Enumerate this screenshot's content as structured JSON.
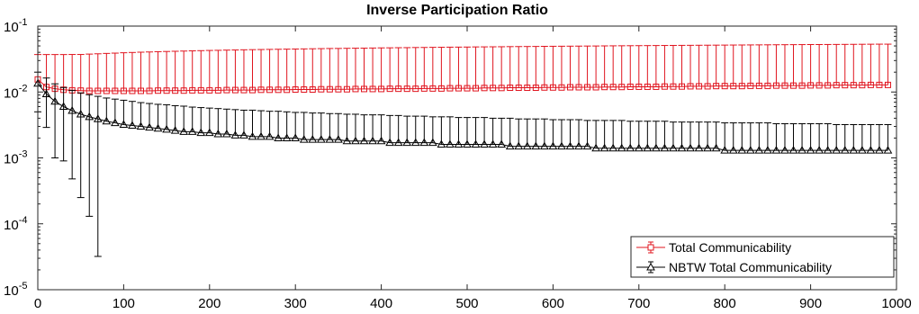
{
  "chart_data": {
    "type": "line",
    "title": "Inverse Participation Ratio",
    "xlabel": "",
    "ylabel": "",
    "xlim": [
      0,
      1000
    ],
    "ylim": [
      1e-05,
      0.1
    ],
    "yscale": "log",
    "grid": false,
    "legend_position": "bottom-right",
    "x_ticks": [
      0,
      100,
      200,
      300,
      400,
      500,
      600,
      700,
      800,
      900,
      1000
    ],
    "y_ticks": [
      {
        "value": 1e-05,
        "base": "10",
        "exp": "-5"
      },
      {
        "value": 0.0001,
        "base": "10",
        "exp": "-4"
      },
      {
        "value": 0.001,
        "base": "10",
        "exp": "-3"
      },
      {
        "value": 0.01,
        "base": "10",
        "exp": "-2"
      },
      {
        "value": 0.1,
        "base": "10",
        "exp": "-1"
      }
    ],
    "x": [
      0,
      10,
      20,
      30,
      40,
      50,
      60,
      70,
      80,
      90,
      100,
      110,
      120,
      130,
      140,
      150,
      160,
      170,
      180,
      190,
      200,
      210,
      220,
      230,
      240,
      250,
      260,
      270,
      280,
      290,
      300,
      310,
      320,
      330,
      340,
      350,
      360,
      370,
      380,
      390,
      400,
      410,
      420,
      430,
      440,
      450,
      460,
      470,
      480,
      490,
      500,
      510,
      520,
      530,
      540,
      550,
      560,
      570,
      580,
      590,
      600,
      610,
      620,
      630,
      640,
      650,
      660,
      670,
      680,
      690,
      700,
      710,
      720,
      730,
      740,
      750,
      760,
      770,
      780,
      790,
      800,
      810,
      820,
      830,
      840,
      850,
      860,
      870,
      880,
      890,
      900,
      910,
      920,
      930,
      940,
      950,
      960,
      970,
      980,
      990
    ],
    "series": [
      {
        "name": "Total Communicability",
        "color": "#e0141e",
        "marker": "square",
        "values": [
          0.0155,
          0.0119,
          0.0112,
          0.0108,
          0.0106,
          0.0105,
          0.0104,
          0.0104,
          0.0104,
          0.0104,
          0.0104,
          0.0104,
          0.0104,
          0.0104,
          0.0105,
          0.0105,
          0.0105,
          0.0105,
          0.0106,
          0.0106,
          0.0106,
          0.0106,
          0.0107,
          0.0107,
          0.0107,
          0.0107,
          0.0108,
          0.0108,
          0.0108,
          0.0108,
          0.0109,
          0.0109,
          0.0109,
          0.011,
          0.011,
          0.011,
          0.011,
          0.0111,
          0.0111,
          0.0111,
          0.0111,
          0.0112,
          0.0112,
          0.0112,
          0.0112,
          0.0113,
          0.0113,
          0.0113,
          0.0114,
          0.0114,
          0.0114,
          0.0114,
          0.0115,
          0.0115,
          0.0115,
          0.0116,
          0.0116,
          0.0116,
          0.0116,
          0.0117,
          0.0117,
          0.0117,
          0.0118,
          0.0118,
          0.0118,
          0.0118,
          0.0119,
          0.0119,
          0.0119,
          0.012,
          0.012,
          0.012,
          0.012,
          0.0121,
          0.0121,
          0.0121,
          0.0122,
          0.0122,
          0.0122,
          0.0123,
          0.0123,
          0.0123,
          0.0123,
          0.0124,
          0.0124,
          0.0124,
          0.0125,
          0.0125,
          0.0125,
          0.0125,
          0.0126,
          0.0126,
          0.0126,
          0.0127,
          0.0127,
          0.0127,
          0.0127,
          0.0128,
          0.0128,
          0.0128
        ],
        "upper": [
          0.037,
          0.037,
          0.037,
          0.037,
          0.0371,
          0.0371,
          0.0376,
          0.038,
          0.0385,
          0.0389,
          0.0394,
          0.0398,
          0.0402,
          0.0405,
          0.0409,
          0.0412,
          0.0415,
          0.0418,
          0.0421,
          0.0424,
          0.0427,
          0.0429,
          0.0432,
          0.0434,
          0.0437,
          0.0439,
          0.0441,
          0.0443,
          0.0445,
          0.0447,
          0.0449,
          0.0451,
          0.0453,
          0.0455,
          0.0457,
          0.0458,
          0.046,
          0.0462,
          0.0463,
          0.0465,
          0.0467,
          0.0468,
          0.047,
          0.0471,
          0.0473,
          0.0474,
          0.0476,
          0.0477,
          0.0479,
          0.048,
          0.0481,
          0.0483,
          0.0484,
          0.0485,
          0.0486,
          0.0488,
          0.0489,
          0.049,
          0.0491,
          0.0493,
          0.0494,
          0.0495,
          0.0496,
          0.0497,
          0.0498,
          0.0499,
          0.0501,
          0.0502,
          0.0503,
          0.0504,
          0.0505,
          0.0506,
          0.0507,
          0.0508,
          0.0509,
          0.051,
          0.0511,
          0.0512,
          0.0513,
          0.0514,
          0.0515,
          0.0516,
          0.0517,
          0.0518,
          0.0519,
          0.052,
          0.0521,
          0.0522,
          0.0523,
          0.0524,
          0.0525,
          0.0525,
          0.0526,
          0.0527,
          0.0528,
          0.0529,
          0.053,
          0.0531,
          0.0532,
          0.0532
        ]
      },
      {
        "name": "NBTW Total Communicability",
        "color": "#000000",
        "marker": "triangle",
        "values": [
          0.0135,
          0.0093,
          0.0072,
          0.006,
          0.0052,
          0.0046,
          0.0042,
          0.0039,
          0.0036,
          0.0034,
          0.0032,
          0.0031,
          0.003,
          0.0029,
          0.0028,
          0.0027,
          0.0026,
          0.0025,
          0.0025,
          0.0024,
          0.0024,
          0.0023,
          0.0023,
          0.0022,
          0.0022,
          0.0021,
          0.0021,
          0.0021,
          0.002,
          0.002,
          0.002,
          0.0019,
          0.0019,
          0.0019,
          0.0019,
          0.0019,
          0.0018,
          0.0018,
          0.0018,
          0.0018,
          0.0018,
          0.0017,
          0.0017,
          0.0017,
          0.0017,
          0.0017,
          0.0017,
          0.0016,
          0.0016,
          0.0016,
          0.0016,
          0.0016,
          0.0016,
          0.0016,
          0.0016,
          0.0015,
          0.0015,
          0.0015,
          0.0015,
          0.0015,
          0.0015,
          0.0015,
          0.0015,
          0.0015,
          0.0015,
          0.0014,
          0.0014,
          0.0014,
          0.0014,
          0.0014,
          0.0014,
          0.0014,
          0.0014,
          0.0014,
          0.0014,
          0.0014,
          0.0014,
          0.0014,
          0.0014,
          0.0014,
          0.0013,
          0.0013,
          0.0013,
          0.0013,
          0.0013,
          0.0013,
          0.0013,
          0.0013,
          0.0013,
          0.0013,
          0.0013,
          0.0013,
          0.0013,
          0.0013,
          0.0013,
          0.0013,
          0.0013,
          0.0013,
          0.0013,
          0.0013
        ],
        "upper": [
          0.02,
          0.0163,
          0.0133,
          0.0117,
          0.0106,
          0.0097,
          0.0091,
          0.0086,
          0.0081,
          0.0078,
          0.0075,
          0.0072,
          0.0069,
          0.0067,
          0.0065,
          0.0064,
          0.0062,
          0.0061,
          0.0059,
          0.0058,
          0.0057,
          0.0056,
          0.0055,
          0.0054,
          0.0053,
          0.0053,
          0.0052,
          0.0051,
          0.0051,
          0.005,
          0.0049,
          0.0049,
          0.0048,
          0.0048,
          0.0047,
          0.0047,
          0.0046,
          0.0046,
          0.0045,
          0.0045,
          0.0045,
          0.0044,
          0.0044,
          0.0043,
          0.0043,
          0.0043,
          0.0042,
          0.0042,
          0.0042,
          0.0041,
          0.0041,
          0.0041,
          0.0041,
          0.004,
          0.004,
          0.004,
          0.0039,
          0.0039,
          0.0039,
          0.0039,
          0.0038,
          0.0038,
          0.0038,
          0.0038,
          0.0037,
          0.0037,
          0.0037,
          0.0037,
          0.0037,
          0.0036,
          0.0036,
          0.0036,
          0.0036,
          0.0036,
          0.0035,
          0.0035,
          0.0035,
          0.0035,
          0.0035,
          0.0035,
          0.0034,
          0.0034,
          0.0034,
          0.0034,
          0.0034,
          0.0034,
          0.0033,
          0.0033,
          0.0033,
          0.0033,
          0.0033,
          0.0033,
          0.0033,
          0.0032,
          0.0032,
          0.0032,
          0.0032,
          0.0032,
          0.0032,
          0.0032
        ],
        "lower": [
          0.005,
          0.0029,
          0.001,
          0.0009,
          0.00048,
          0.00025,
          0.00013,
          3.2e-05,
          null,
          null,
          null,
          null,
          null,
          null,
          null,
          null,
          null,
          null,
          null,
          null,
          null,
          null,
          null,
          null,
          null,
          null,
          null,
          null,
          null,
          null,
          null,
          null,
          null,
          null,
          null,
          null,
          null,
          null,
          null,
          null,
          null,
          null,
          null,
          null,
          null,
          null,
          null,
          null,
          null,
          null,
          null,
          null,
          null,
          null,
          null,
          null,
          null,
          null,
          null,
          null,
          null,
          null,
          null,
          null,
          null,
          null,
          null,
          null,
          null,
          null,
          null,
          null,
          null,
          null,
          null,
          null,
          null,
          null,
          null,
          null,
          null,
          null,
          null,
          null,
          null,
          null,
          null,
          null,
          null,
          null,
          null,
          null,
          null,
          null,
          null,
          null,
          null,
          null,
          null,
          null
        ]
      }
    ]
  }
}
